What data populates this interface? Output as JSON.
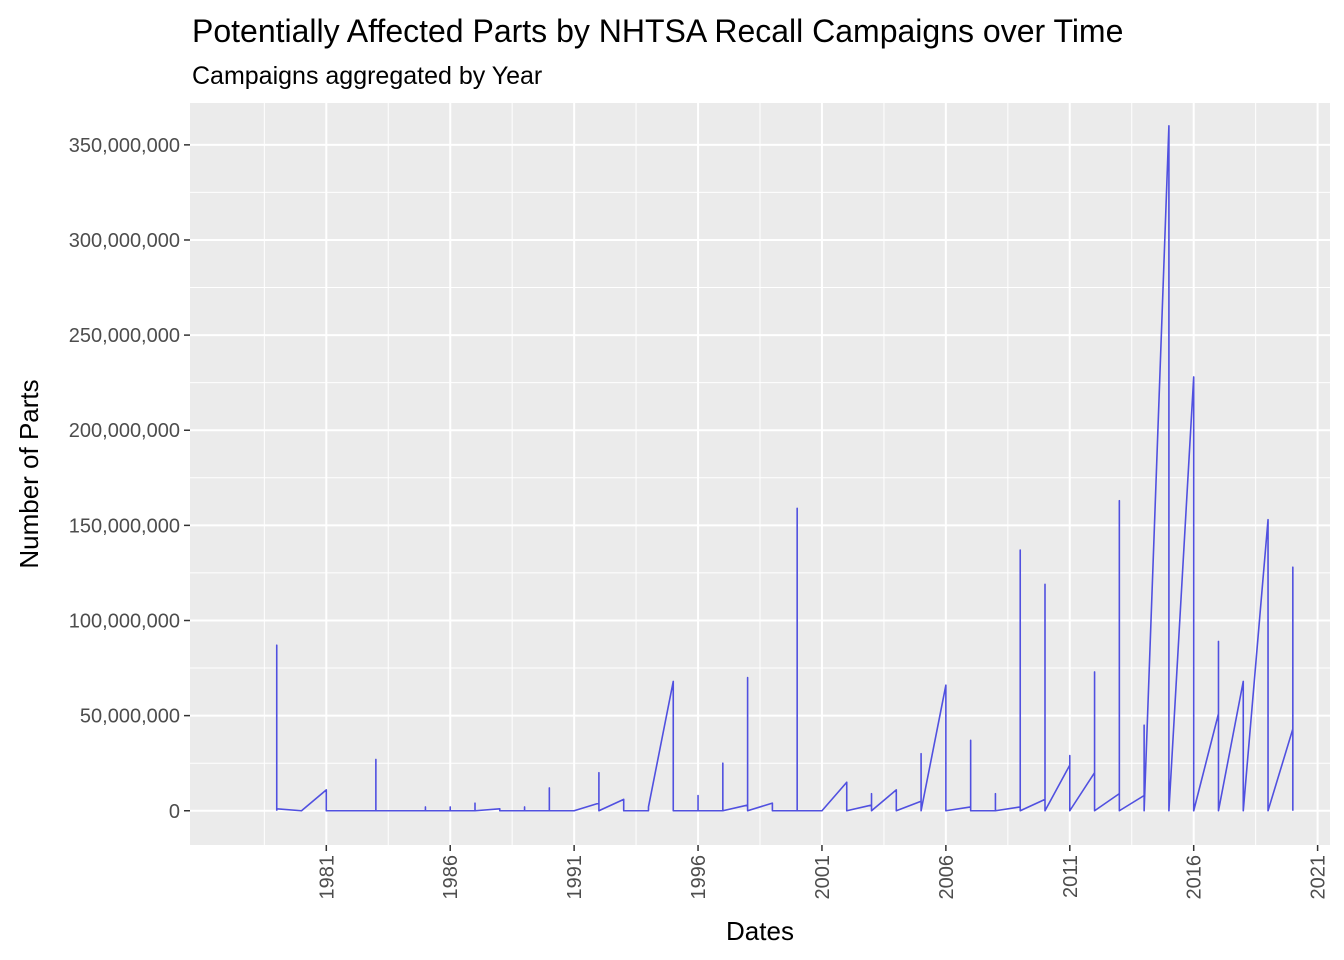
{
  "chart_data": {
    "type": "line",
    "title": "Potentially Affected Parts by NHTSA Recall Campaigns over Time",
    "subtitle": "Campaigns aggregated by Year",
    "xlabel": "Dates",
    "ylabel": "Number of Parts",
    "xlim": [
      1975.5,
      2021.5
    ],
    "ylim": [
      -18000000,
      372000000
    ],
    "x_ticks": [
      1981,
      1986,
      1991,
      1996,
      2001,
      2006,
      2011,
      2016,
      2021
    ],
    "x_tick_labels": [
      "1981",
      "1986",
      "1991",
      "1996",
      "2001",
      "2006",
      "2011",
      "2016",
      "2021"
    ],
    "y_ticks": [
      0,
      50000000,
      100000000,
      150000000,
      200000000,
      250000000,
      300000000,
      350000000
    ],
    "y_tick_labels": [
      "0",
      "50,000,000",
      "100,000,000",
      "150,000,000",
      "200,000,000",
      "250,000,000",
      "300,000,000",
      "350,000,000"
    ],
    "grid": true,
    "line_color": "#5050e0",
    "panel_color": "#ebebeb",
    "series": [
      {
        "points": [
          [
            1979,
            0
          ],
          [
            1979,
            87000000
          ],
          [
            1979,
            1000000
          ],
          [
            1980,
            0
          ],
          [
            1981,
            11000000
          ],
          [
            1981,
            0
          ],
          [
            1983,
            0
          ],
          [
            1983,
            27000000
          ],
          [
            1983,
            0
          ],
          [
            1985,
            0
          ],
          [
            1985,
            2000000
          ],
          [
            1985,
            0
          ],
          [
            1986,
            0
          ],
          [
            1986,
            2000000
          ],
          [
            1986,
            0
          ],
          [
            1987,
            0
          ],
          [
            1987,
            4000000
          ],
          [
            1987,
            0
          ],
          [
            1988,
            1000000
          ],
          [
            1988,
            0
          ],
          [
            1989,
            0
          ],
          [
            1989,
            2000000
          ],
          [
            1989,
            0
          ],
          [
            1990,
            0
          ],
          [
            1990,
            12000000
          ],
          [
            1990,
            0
          ],
          [
            1991,
            0
          ],
          [
            1992,
            4000000
          ],
          [
            1992,
            20000000
          ],
          [
            1992,
            0
          ],
          [
            1993,
            6000000
          ],
          [
            1993,
            0
          ],
          [
            1994,
            0
          ],
          [
            1994,
            2000000
          ],
          [
            1995,
            68000000
          ],
          [
            1995,
            0
          ],
          [
            1996,
            0
          ],
          [
            1996,
            8000000
          ],
          [
            1996,
            0
          ],
          [
            1997,
            0
          ],
          [
            1997,
            25000000
          ],
          [
            1997,
            0
          ],
          [
            1998,
            3000000
          ],
          [
            1998,
            70000000
          ],
          [
            1998,
            0
          ],
          [
            1999,
            4000000
          ],
          [
            1999,
            0
          ],
          [
            2000,
            0
          ],
          [
            2000,
            159000000
          ],
          [
            2000,
            0
          ],
          [
            2001,
            0
          ],
          [
            2002,
            15000000
          ],
          [
            2002,
            0
          ],
          [
            2003,
            3000000
          ],
          [
            2003,
            9000000
          ],
          [
            2003,
            0
          ],
          [
            2004,
            11000000
          ],
          [
            2004,
            0
          ],
          [
            2005,
            5000000
          ],
          [
            2005,
            30000000
          ],
          [
            2005,
            0
          ],
          [
            2006,
            66000000
          ],
          [
            2006,
            0
          ],
          [
            2007,
            2000000
          ],
          [
            2007,
            37000000
          ],
          [
            2007,
            0
          ],
          [
            2008,
            0
          ],
          [
            2008,
            9000000
          ],
          [
            2008,
            0
          ],
          [
            2009,
            2000000
          ],
          [
            2009,
            137000000
          ],
          [
            2009,
            0
          ],
          [
            2010,
            6000000
          ],
          [
            2010,
            119000000
          ],
          [
            2010,
            0
          ],
          [
            2011,
            24000000
          ],
          [
            2011,
            29000000
          ],
          [
            2011,
            0
          ],
          [
            2012,
            20000000
          ],
          [
            2012,
            73000000
          ],
          [
            2012,
            0
          ],
          [
            2013,
            9000000
          ],
          [
            2013,
            163000000
          ],
          [
            2013,
            0
          ],
          [
            2014,
            8000000
          ],
          [
            2014,
            45000000
          ],
          [
            2014,
            0
          ],
          [
            2015,
            360000000
          ],
          [
            2015,
            0
          ],
          [
            2016,
            228000000
          ],
          [
            2016,
            0
          ],
          [
            2017,
            51000000
          ],
          [
            2017,
            89000000
          ],
          [
            2017,
            0
          ],
          [
            2018,
            68000000
          ],
          [
            2018,
            0
          ],
          [
            2019,
            153000000
          ],
          [
            2019,
            0
          ],
          [
            2020,
            43000000
          ],
          [
            2020,
            128000000
          ],
          [
            2020,
            0
          ]
        ]
      }
    ]
  }
}
